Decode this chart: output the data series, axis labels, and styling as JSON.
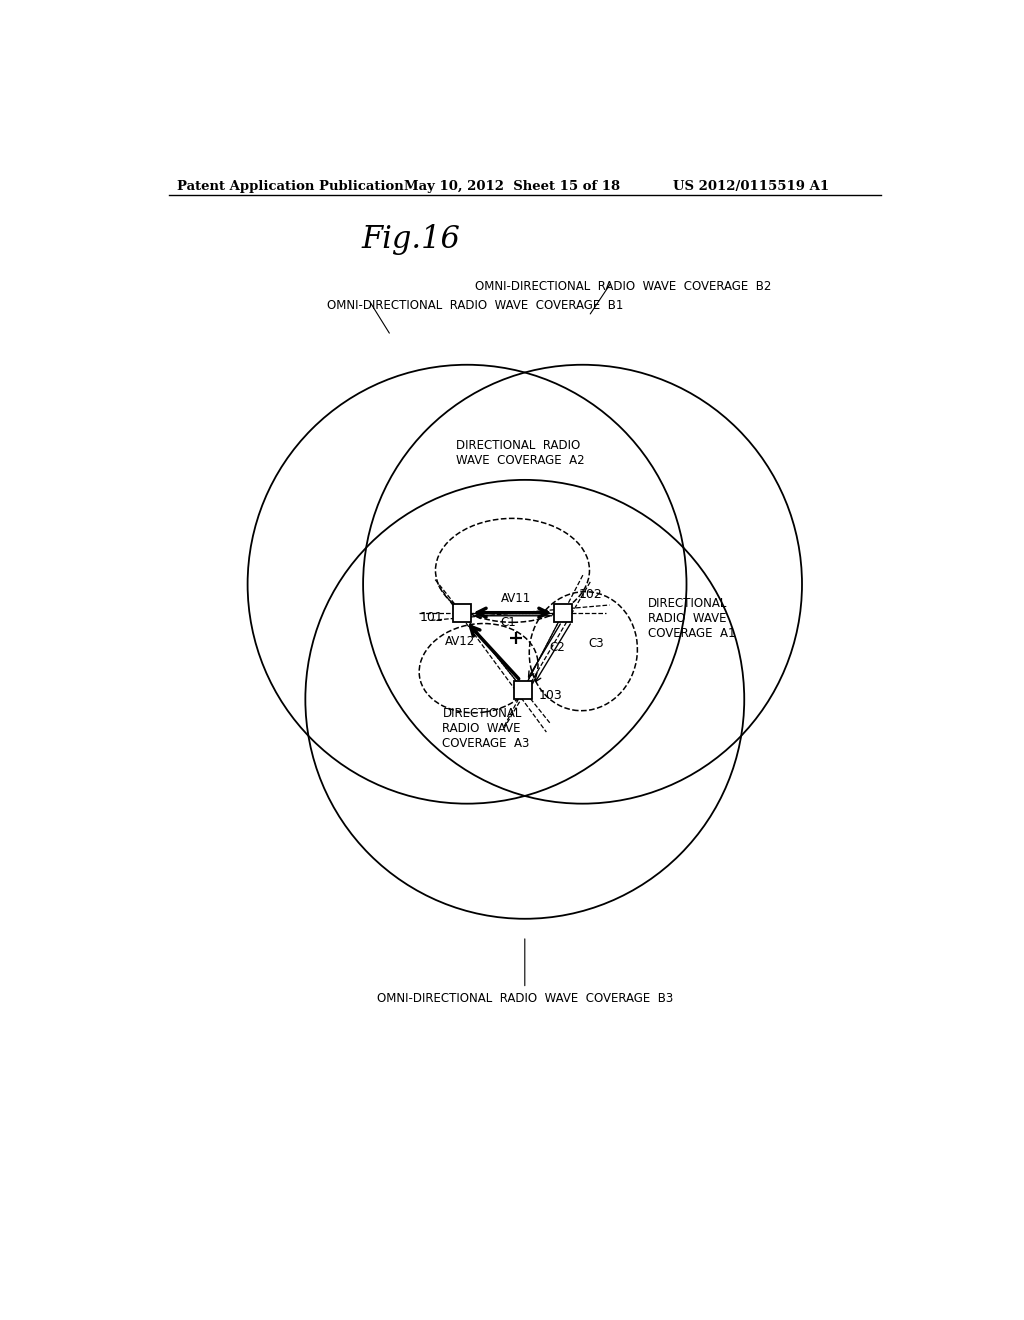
{
  "header_left": "Patent Application Publication",
  "header_mid": "May 10, 2012  Sheet 15 of 18",
  "header_right": "US 2012/0115519 A1",
  "fig_title": "Fig.16",
  "label_B1": "OMNI-DIRECTIONAL  RADIO  WAVE  COVERAGE  B1",
  "label_B2": "OMNI-DIRECTIONAL  RADIO  WAVE  COVERAGE  B2",
  "label_B3": "OMNI-DIRECTIONAL  RADIO  WAVE  COVERAGE  B3",
  "label_A1": "DIRECTIONAL\nRADIO  WAVE\nCOVERAGE  A1",
  "label_A2": "DIRECTIONAL  RADIO\nWAVE  COVERAGE  A2",
  "label_A3": "DIRECTIONAL\nRADIO  WAVE\nCOVERAGE  A3",
  "label_AV11": "AV11",
  "label_AV12": "AV12",
  "label_C1": "C1",
  "label_C2": "C2",
  "label_C3": "C3",
  "label_101": "101",
  "label_102": "102",
  "label_103": "103",
  "bg_color": "#ffffff"
}
